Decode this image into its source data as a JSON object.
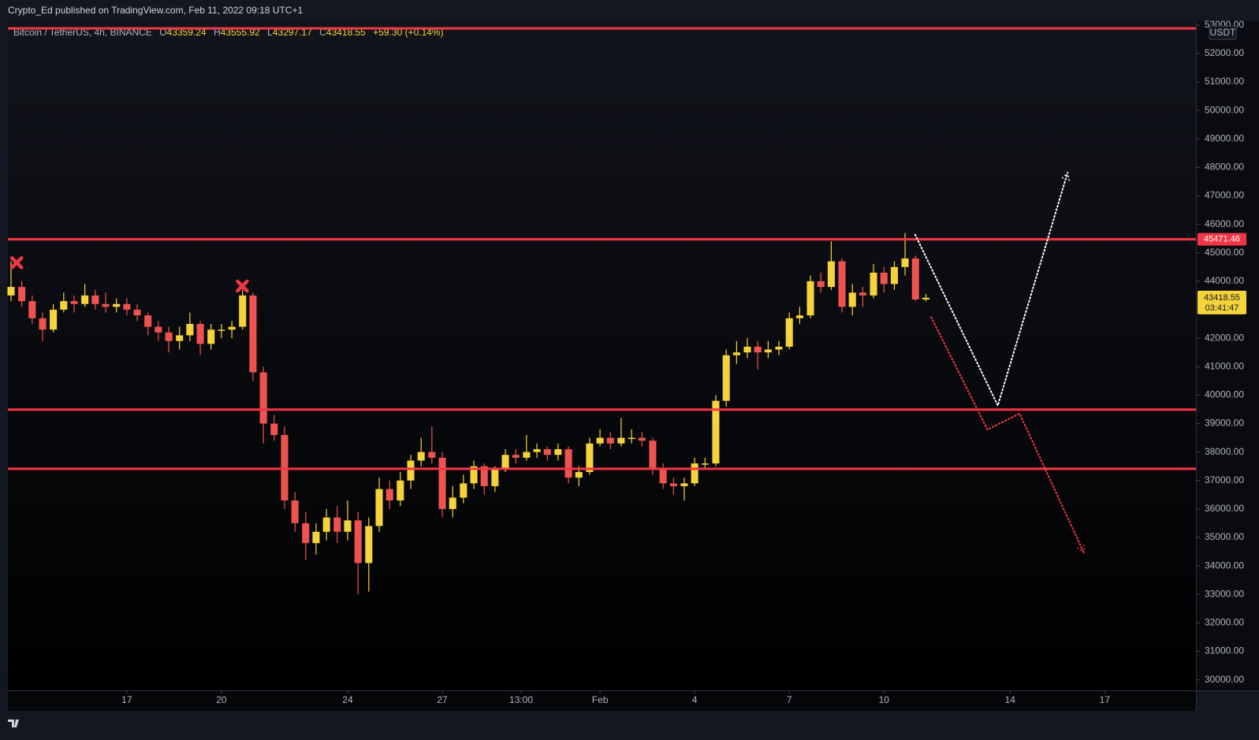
{
  "header": {
    "published": "Crypto_Ed published on TradingView.com, Feb 11, 2022 09:18 UTC+1",
    "symbol": "Bitcoin / TetherUS, 4h, BINANCE",
    "o": "O",
    "h": "H",
    "l": "L",
    "c": "C",
    "change": "+59.30 (+0.14%)"
  },
  "chart_data": {
    "type": "candlestick",
    "currency": "USDT",
    "countdown": "03:41:47",
    "up_color": "#f5d33a",
    "down_color": "#ef5350",
    "grid": false,
    "x": [
      13.33,
      13.67,
      14.0,
      14.33,
      14.67,
      15.0,
      15.33,
      15.67,
      16.0,
      16.33,
      16.67,
      17.0,
      17.33,
      17.67,
      18.0,
      18.33,
      18.67,
      19.0,
      19.33,
      19.67,
      20.0,
      20.33,
      20.67,
      21.0,
      21.33,
      21.67,
      22.0,
      22.33,
      22.67,
      23.0,
      23.33,
      23.67,
      24.0,
      24.33,
      24.67,
      25.0,
      25.33,
      25.67,
      26.0,
      26.33,
      26.67,
      27.0,
      27.33,
      27.67,
      28.0,
      28.33,
      28.67,
      29.0,
      29.33,
      29.67,
      30.0,
      30.33,
      30.67,
      31.0,
      31.33,
      31.67,
      32.0,
      32.33,
      32.67,
      33.0,
      33.33,
      33.67,
      34.0,
      34.33,
      34.67,
      35.0,
      35.33,
      35.67,
      36.0,
      36.33,
      36.67,
      37.0,
      37.33,
      37.67,
      38.0,
      38.33,
      38.67,
      39.0,
      39.33,
      39.67,
      40.0,
      40.33,
      40.67,
      41.0,
      41.33,
      41.67,
      42.0,
      42.33
    ],
    "open": [
      43500,
      43800,
      43300,
      42700,
      42300,
      43000,
      43300,
      43200,
      43500,
      43200,
      43100,
      43200,
      43000,
      42800,
      42400,
      42200,
      41900,
      42100,
      42500,
      41800,
      42300,
      42300,
      42400,
      43500,
      40800,
      39000,
      38600,
      36300,
      35500,
      34800,
      35200,
      35700,
      35200,
      35600,
      34100,
      35400,
      36700,
      36300,
      37000,
      37700,
      38000,
      37800,
      36000,
      36400,
      36900,
      37500,
      36800,
      37400,
      37900,
      37800,
      38000,
      38100,
      37900,
      38100,
      37100,
      37300,
      38300,
      38500,
      38300,
      38500,
      38500,
      38400,
      37400,
      36900,
      36800,
      36900,
      37600,
      37600,
      39800,
      41400,
      41500,
      41700,
      41500,
      41600,
      41700,
      42700,
      42800,
      44000,
      43800,
      44700,
      43100,
      43600,
      43500,
      44300,
      43900,
      44500,
      44800,
      43359.24
    ],
    "high": [
      44700,
      44000,
      43500,
      42900,
      43200,
      43600,
      43500,
      43900,
      43700,
      43600,
      43400,
      43400,
      43200,
      42900,
      42600,
      42400,
      42400,
      42900,
      42600,
      42500,
      42500,
      42600,
      43700,
      43600,
      41000,
      39300,
      38900,
      36600,
      35900,
      35500,
      36000,
      36100,
      36300,
      35900,
      35700,
      37100,
      37000,
      37300,
      37900,
      38500,
      38900,
      38000,
      36800,
      37200,
      37700,
      37600,
      37500,
      38100,
      38100,
      38600,
      38300,
      38200,
      38300,
      38200,
      37500,
      38500,
      38800,
      38700,
      39200,
      38800,
      38700,
      38500,
      37600,
      37100,
      37100,
      37800,
      37800,
      40000,
      41600,
      41900,
      42000,
      41900,
      41900,
      41900,
      42900,
      43100,
      44200,
      44300,
      45400,
      44800,
      43900,
      43800,
      44600,
      44500,
      44700,
      45700,
      44900,
      43555.92
    ],
    "low": [
      43300,
      43100,
      42500,
      41900,
      42200,
      42900,
      42900,
      43100,
      43000,
      42900,
      42900,
      42800,
      42600,
      42100,
      41900,
      41500,
      41600,
      41900,
      41400,
      41600,
      42000,
      42000,
      42300,
      40500,
      38300,
      38400,
      36000,
      35200,
      34200,
      34400,
      34900,
      34800,
      34900,
      33000,
      33100,
      35200,
      36000,
      36100,
      36700,
      37500,
      37600,
      35700,
      35700,
      36200,
      36700,
      36500,
      36600,
      37300,
      37600,
      37700,
      37800,
      37700,
      37700,
      36900,
      36800,
      37200,
      38200,
      38100,
      38200,
      38300,
      38200,
      37200,
      36700,
      36500,
      36300,
      36800,
      37400,
      37500,
      39600,
      41100,
      41300,
      40900,
      41300,
      41400,
      41600,
      42500,
      42700,
      43600,
      43700,
      42900,
      42800,
      43100,
      43400,
      43600,
      43700,
      44200,
      43300,
      43297.17
    ],
    "close": [
      43800,
      43300,
      42700,
      42300,
      43000,
      43300,
      43200,
      43500,
      43200,
      43100,
      43200,
      43000,
      42800,
      42400,
      42200,
      41900,
      42100,
      42500,
      41800,
      42300,
      42300,
      42400,
      43500,
      40800,
      39000,
      38600,
      36300,
      35500,
      34800,
      35200,
      35700,
      35200,
      35600,
      34100,
      35400,
      36700,
      36300,
      37000,
      37700,
      38000,
      37800,
      36000,
      36400,
      36900,
      37500,
      36800,
      37400,
      37900,
      37800,
      38000,
      38100,
      37900,
      38100,
      37100,
      37300,
      38300,
      38500,
      38300,
      38500,
      38500,
      38400,
      37400,
      36900,
      36800,
      36900,
      37600,
      37600,
      39800,
      41400,
      41500,
      41700,
      41500,
      41600,
      41700,
      42700,
      42800,
      44000,
      43800,
      44700,
      43100,
      43600,
      43500,
      44300,
      43900,
      44500,
      44800,
      43359.24,
      43418.55
    ],
    "xlim": [
      13.23,
      50.89
    ],
    "ylim": [
      29630,
      53130
    ],
    "xticks": [
      17,
      20,
      24,
      27,
      {
        "value": 29.5,
        "label": "13:00"
      },
      {
        "value": 32,
        "label": "Feb"
      },
      {
        "value": 35,
        "label": "4"
      },
      {
        "value": 38,
        "label": "7"
      },
      {
        "value": 41,
        "label": "10"
      },
      {
        "value": 45,
        "label": "14"
      },
      {
        "value": 48,
        "label": "17"
      }
    ],
    "yticks": [
      {
        "value": 30000,
        "label": "30000.00"
      },
      {
        "value": 31000,
        "label": "31000.00"
      },
      {
        "value": 32000,
        "label": "32000.00"
      },
      {
        "value": 33000,
        "label": "33000.00"
      },
      {
        "value": 34000,
        "label": "34000.00"
      },
      {
        "value": 35000,
        "label": "35000.00"
      },
      {
        "value": 36000,
        "label": "36000.00"
      },
      {
        "value": 37000,
        "label": "37000.00"
      },
      {
        "value": 38000,
        "label": "38000.00"
      },
      {
        "value": 39000,
        "label": "39000.00"
      },
      {
        "value": 40000,
        "label": "40000.00"
      },
      {
        "value": 41000,
        "label": "41000.00"
      },
      {
        "value": 42000,
        "label": "42000.00"
      },
      {
        "value": 43000,
        "label": "43000.00"
      },
      {
        "value": 44000,
        "label": "44000.00"
      },
      {
        "value": 45000,
        "label": "45000.00"
      },
      {
        "value": 46000,
        "label": "46000.00"
      },
      {
        "value": 47000,
        "label": "47000.00"
      },
      {
        "value": 48000,
        "label": "48000.00"
      },
      {
        "value": 49000,
        "label": "49000.00"
      },
      {
        "value": 50000,
        "label": "50000.00"
      },
      {
        "value": 51000,
        "label": "51000.00"
      },
      {
        "value": 52000,
        "label": "52000.00"
      },
      {
        "value": 53000,
        "label": "53000.00"
      }
    ],
    "hlines": {
      "color": "#f23645",
      "values": [
        52880,
        45471.46,
        39490,
        37410
      ],
      "labeled": [
        false,
        true,
        false,
        false
      ]
    },
    "markers": {
      "color": "#f23645",
      "x": [
        13.51,
        20.66
      ],
      "y": [
        44650,
        43830
      ]
    },
    "drawings": [
      {
        "color": "#ffffff",
        "x": [
          41.99,
          44.61,
          46.82
        ],
        "y": [
          45634,
          39634,
          47803
        ]
      },
      {
        "color": "#f23645",
        "x": [
          42.5,
          44.28,
          45.3,
          47.33
        ],
        "y": [
          42732,
          38789,
          39352,
          34479
        ]
      }
    ]
  }
}
